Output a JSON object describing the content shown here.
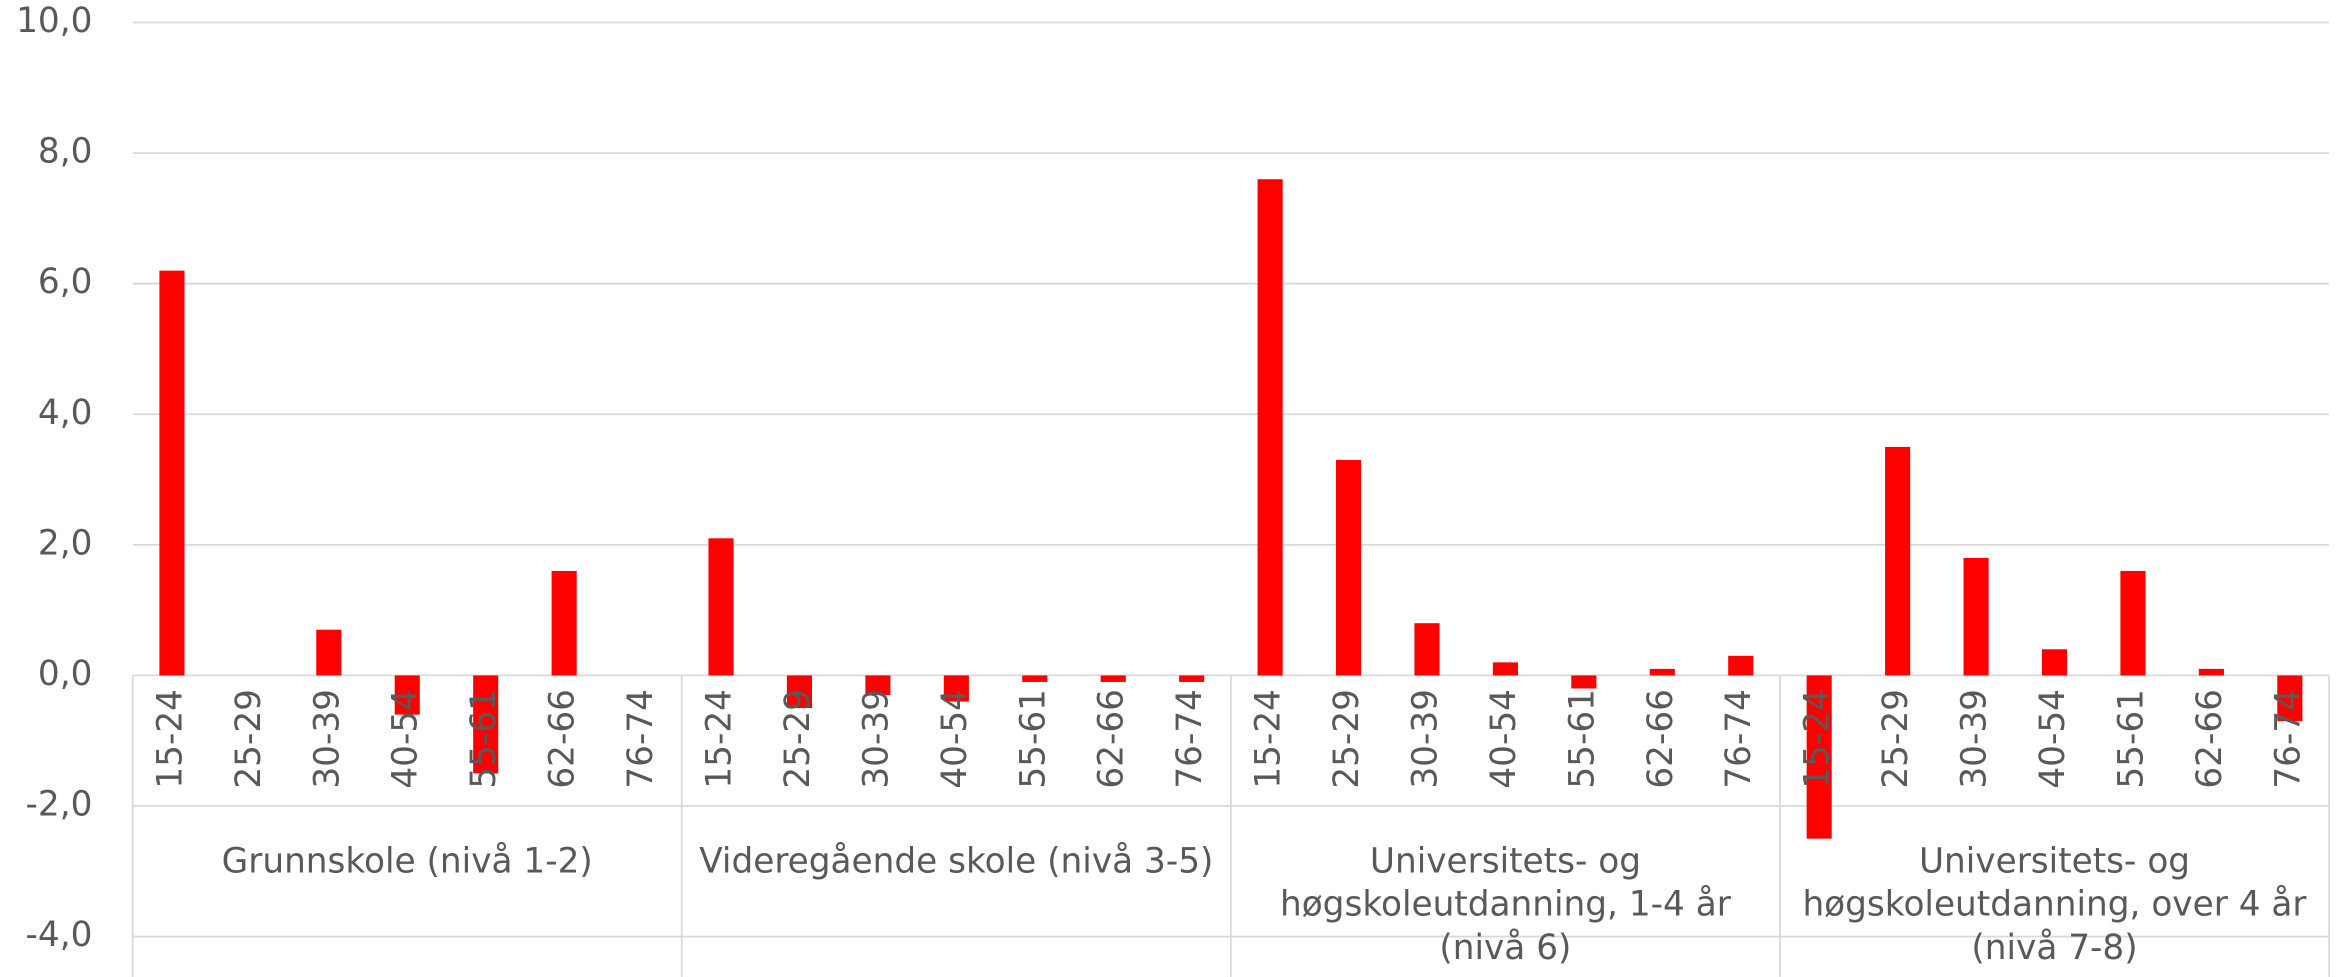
{
  "chart_data": {
    "type": "bar",
    "color": "#ff0000",
    "grid": true,
    "ylim": [
      -4,
      10
    ],
    "yticks": [
      {
        "value": -4,
        "label": "-4,0"
      },
      {
        "value": -2,
        "label": "-2,0"
      },
      {
        "value": 0,
        "label": "0,0"
      },
      {
        "value": 2,
        "label": "2,0"
      },
      {
        "value": 4,
        "label": "4,0"
      },
      {
        "value": 6,
        "label": "6,0"
      },
      {
        "value": 8,
        "label": "8,0"
      },
      {
        "value": 10,
        "label": "10,0"
      }
    ],
    "groups": [
      {
        "name": "Grunnskole (nivå 1-2)",
        "categories": [
          "15-24",
          "25-29",
          "30-39",
          "40-54",
          "55-61",
          "62-66",
          "76-74"
        ],
        "values": [
          6.2,
          0,
          0.7,
          -0.6,
          -1.5,
          1.6,
          0
        ]
      },
      {
        "name": "Videregående skole (nivå 3-5)",
        "categories": [
          "15-24",
          "25-29",
          "30-39",
          "40-54",
          "55-61",
          "62-66",
          "76-74"
        ],
        "values": [
          2.1,
          -0.5,
          -0.3,
          -0.4,
          -0.1,
          -0.1,
          -0.1
        ]
      },
      {
        "name": "Universitets- og høgskoleutdanning, 1-4 år (nivå 6)",
        "categories": [
          "15-24",
          "25-29",
          "30-39",
          "40-54",
          "55-61",
          "62-66",
          "76-74"
        ],
        "values": [
          7.6,
          3.3,
          0.8,
          0.2,
          -0.2,
          0.1,
          0.3
        ]
      },
      {
        "name": "Universitets- og høgskoleutdanning, over 4 år (nivå 7-8)",
        "categories": [
          "15-24",
          "25-29",
          "30-39",
          "40-54",
          "55-61",
          "62-66",
          "76-74"
        ],
        "values": [
          -2.5,
          3.5,
          1.8,
          0.4,
          1.6,
          0.1,
          -0.7
        ]
      }
    ]
  }
}
